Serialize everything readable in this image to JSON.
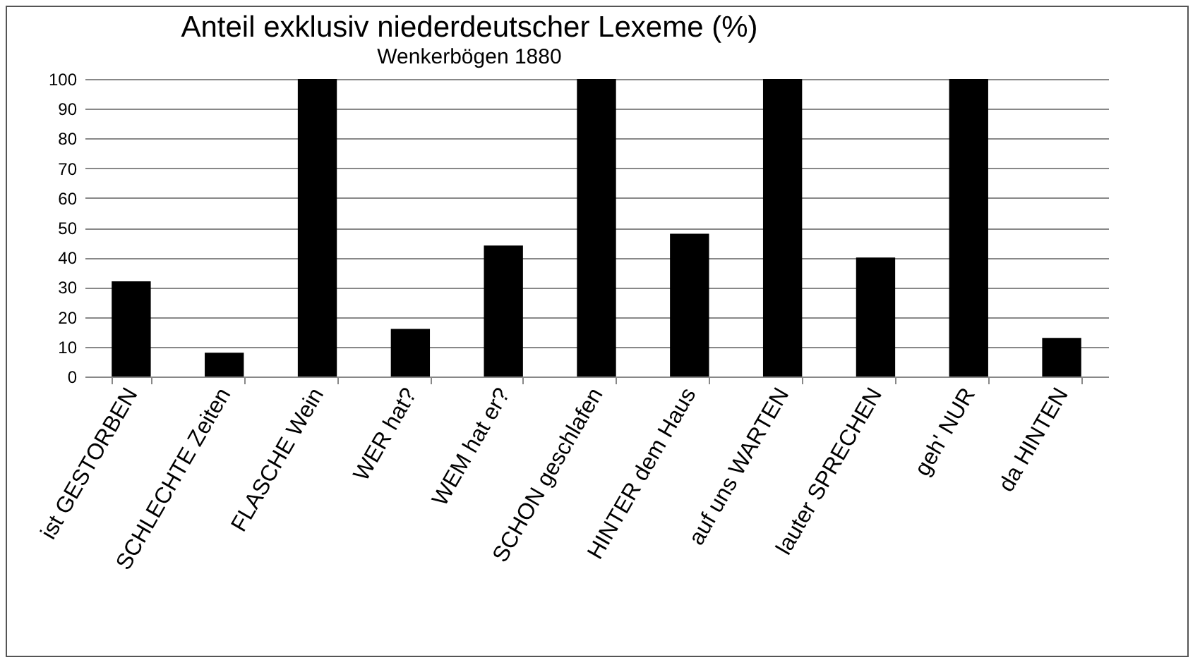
{
  "chart_data": {
    "type": "bar",
    "title": "Anteil exklusiv niederdeutscher Lexeme (%)",
    "subtitle": "Wenkerbögen 1880",
    "categories": [
      "ist GESTORBEN",
      "SCHLECHTE Zeiten",
      "FLASCHE Wein",
      "WER hat?",
      "WEM hat er?",
      "SCHON geschlafen",
      "HINTER dem Haus",
      "auf uns WARTEN",
      "lauter SPRECHEN",
      "geh' NUR",
      "da HINTEN"
    ],
    "values": [
      32,
      8,
      100,
      16,
      44,
      100,
      48,
      100,
      40,
      100,
      13
    ],
    "color": "#000000",
    "ylim": [
      0,
      100
    ],
    "yticks": [
      0,
      10,
      20,
      30,
      40,
      50,
      60,
      70,
      80,
      90,
      100
    ],
    "grid": "y"
  }
}
